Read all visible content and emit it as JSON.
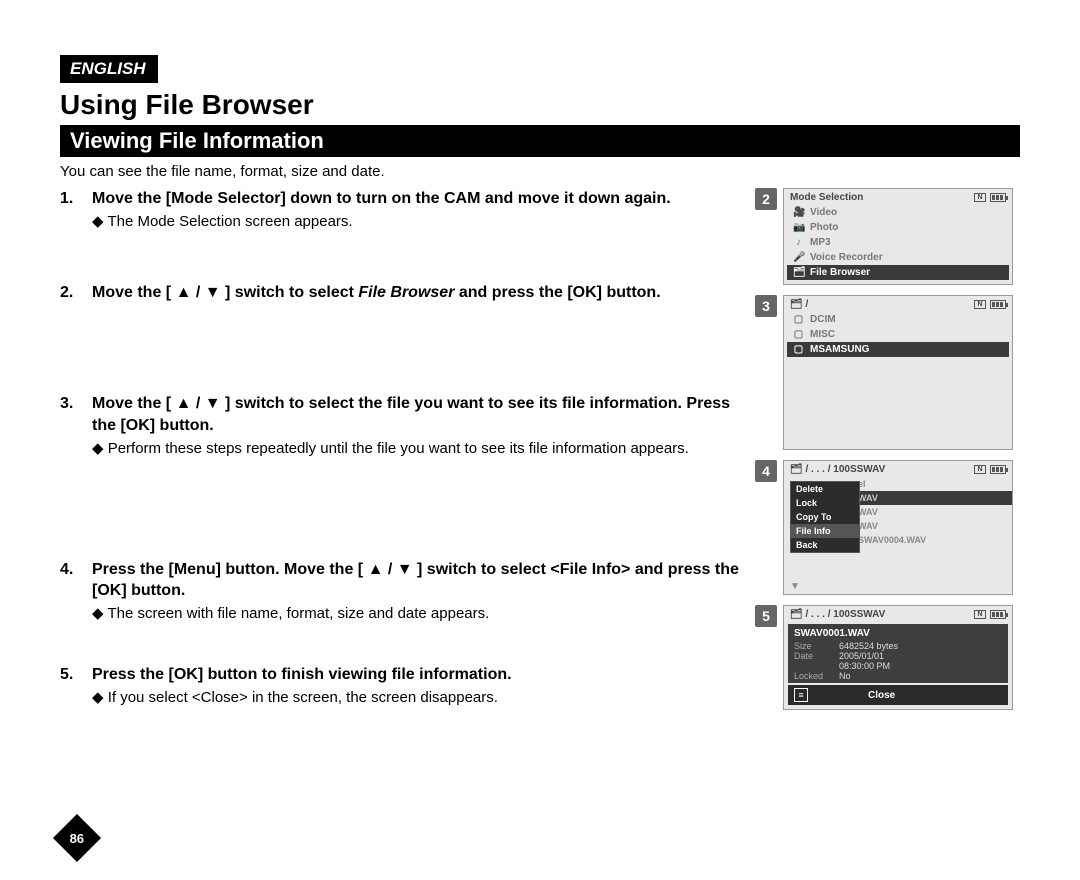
{
  "lang": "ENGLISH",
  "main_title": "Using File Browser",
  "section_title": "Viewing File Information",
  "intro": "You can see the file name, format, size and date.",
  "steps": [
    {
      "num": "1.",
      "bold": "Move the [Mode Selector] down to turn on the CAM and move it down again.",
      "sub": "The Mode Selection screen appears."
    },
    {
      "num": "2.",
      "bold_pre": "Move the [ ▲ / ▼ ] switch to select ",
      "italic": "File Browser",
      "bold_post": " and press the [OK] button."
    },
    {
      "num": "3.",
      "bold": "Move the [ ▲ / ▼ ] switch to select the file you want to see its file information. Press the [OK] button.",
      "sub": "Perform these steps repeatedly until the file you want to see its file information appears."
    },
    {
      "num": "4.",
      "bold": "Press the [Menu] button. Move the [ ▲ / ▼ ] switch to select <File Info> and press the [OK] button.",
      "sub": "The screen with file name, format, size and date appears."
    },
    {
      "num": "5.",
      "bold": "Press the [OK] button to finish viewing file information.",
      "sub": "If you select <Close> in the screen, the screen disappears."
    }
  ],
  "page_num": "86",
  "panel2": {
    "title": "Mode Selection",
    "items": [
      {
        "icon": "🎥",
        "label": "Video"
      },
      {
        "icon": "📷",
        "label": "Photo"
      },
      {
        "icon": "♪",
        "label": "MP3"
      },
      {
        "icon": "🎤",
        "label": "Voice Recorder"
      },
      {
        "icon": "🗂",
        "label": "File Browser",
        "sel": true
      }
    ]
  },
  "panel3": {
    "crumb": "/",
    "items": [
      {
        "label": "DCIM"
      },
      {
        "label": "MISC"
      },
      {
        "label": "MSAMSUNG",
        "sel": true
      }
    ]
  },
  "panel4": {
    "crumb": "/ . . . / 100SSWAV",
    "menu": [
      "Delete",
      "Lock",
      "Copy To",
      "File Info",
      "Back"
    ],
    "menu_sel": 3,
    "behind": [
      "el",
      "WAV",
      "WAV",
      "WAV",
      "SWAV0004.WAV"
    ]
  },
  "panel5": {
    "crumb": "/ . . . / 100SSWAV",
    "fname": "SWAV0001.WAV",
    "size_k": "Size",
    "size_v": "6482524 bytes",
    "date_k": "Date",
    "date_v": "2005/01/01",
    "time_v": "08:30:00 PM",
    "lock_k": "Locked",
    "lock_v": "No",
    "close": "Close"
  }
}
